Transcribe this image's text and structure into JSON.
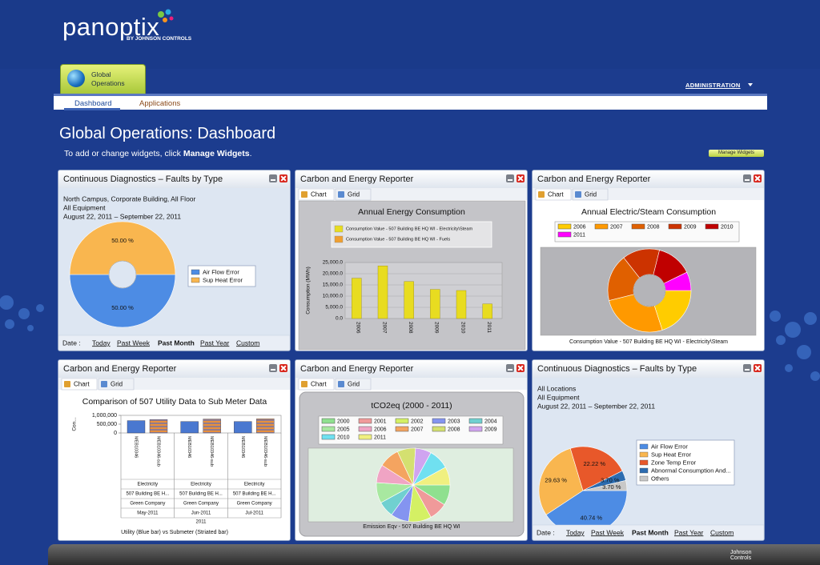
{
  "header": {
    "logo": "panoptix",
    "logo_sub": "BY JOHNSON CONTROLS",
    "tab": "Global Operations",
    "admin": "ADMINISTRATION",
    "footer_logo": "Johnson Controls"
  },
  "nav": [
    "Dashboard",
    "Applications"
  ],
  "page": {
    "title": "Global Operations: Dashboard",
    "hint": "To add or change widgets, click",
    "hint_link": "Manage Widgets",
    "hint_end": ".",
    "button": "Manage Widgets"
  },
  "widgets": [
    {
      "title": "Continuous Diagnostics – Faults by Type",
      "info": [
        "North Campus, Corporate Building, All Floor",
        "All Equipment",
        "August 22, 2011 – September 22, 2011"
      ],
      "chart": {
        "type": "donut",
        "categories": [
          "Air Flow Error",
          "Sup Heat Error"
        ],
        "values": [
          50,
          50
        ],
        "value_labels": [
          "50.00 %",
          "50.00 %"
        ],
        "colors": [
          "#4d8ce4",
          "#f9b64f"
        ]
      },
      "date_bar": {
        "label": "Date :",
        "options": [
          "Today",
          "Past Week",
          "Past Month",
          "Past Year",
          "Custom"
        ],
        "selected": 2
      }
    },
    {
      "title": "Carbon and Energy Reporter",
      "tabs": [
        "Chart",
        "Grid"
      ],
      "chart": {
        "type": "bar",
        "title": "Annual Energy Consumption",
        "y_label": "Consumption (MWh)",
        "categories": [
          "2006",
          "2007",
          "2008",
          "2009",
          "2010",
          "2011"
        ],
        "series": [
          {
            "name": "Consumption Value - 507 Building BE HQ WI - Electricity\\Steam",
            "color": "#e8dc20",
            "values": [
              18000,
              23500,
              16500,
              13000,
              12500,
              6500
            ]
          },
          {
            "name": "Consumption Value - 507 Building BE HQ WI - Fuels",
            "color": "#f0a030",
            "values": [
              0,
              0,
              0,
              0,
              0,
              0
            ]
          }
        ],
        "ylim": [
          0,
          25000
        ],
        "yticks": [
          {
            "value": 0,
            "label": "0.0"
          },
          {
            "value": 5000,
            "label": "5,000.0"
          },
          {
            "value": 10000,
            "label": "10,000.0"
          },
          {
            "value": 15000,
            "label": "15,000.0"
          },
          {
            "value": 20000,
            "label": "20,000.0"
          },
          {
            "value": 25000,
            "label": "25,000.0"
          }
        ],
        "grid": true
      }
    },
    {
      "title": "Carbon and Energy Reporter",
      "tabs": [
        "Chart",
        "Grid"
      ],
      "chart": {
        "type": "donut",
        "title": "Annual Electric/Steam Consumption",
        "caption": "Consumption Value - 507 Building BE HQ WI - Electricity\\Steam",
        "categories": [
          "2006",
          "2007",
          "2008",
          "2009",
          "2010",
          "2011"
        ],
        "values": [
          18000,
          23500,
          16500,
          13000,
          12500,
          6500
        ],
        "colors": [
          "#ffcc00",
          "#ff9900",
          "#e06000",
          "#cc3300",
          "#c00000",
          "#ff00ff"
        ]
      }
    },
    {
      "title": "Carbon and Energy Reporter",
      "tabs": [
        "Chart",
        "Grid"
      ],
      "chart": {
        "type": "grouped_bar",
        "title": "Comparison of 507 Utility Data to Sub Meter Data",
        "y_label": "Con...",
        "categories": [
          "May-2011",
          "Jun-2011",
          "Jul-2011"
        ],
        "series": [
          {
            "label": "MEB10346",
            "color": "#4a78d0",
            "values": [
              700000,
              650000,
              650000
            ]
          },
          {
            "label": "MEB10346-sub",
            "color": "#e8903c",
            "values": [
              760000,
              790000,
              800000
            ]
          }
        ],
        "rows": [
          "Electricity",
          "507 Building  BE H...",
          "Green Company"
        ],
        "year": "2011",
        "ylim": [
          0,
          1000000
        ],
        "yticks": [
          0,
          {
            "value": 500000,
            "label": "500,000"
          },
          {
            "value": 1000000,
            "label": "1,000,000"
          }
        ],
        "caption": "Utility (Blue bar) vs Submeter (Striated bar)"
      }
    },
    {
      "title": "Carbon and Energy Reporter",
      "tabs": [
        "Chart",
        "Grid"
      ],
      "chart": {
        "type": "pie",
        "title": "tCO2eq (2000 - 2011)",
        "caption": "Emission Eqv - 507 Building BE HQ WI",
        "categories": [
          "2000",
          "2001",
          "2002",
          "2003",
          "2004",
          "2005",
          "2006",
          "2007",
          "2008",
          "2009",
          "2010",
          "2011"
        ],
        "values": [
          9,
          8,
          10,
          8,
          7,
          9,
          8,
          9,
          8,
          7,
          9,
          8
        ],
        "colors": [
          "#8fe08f",
          "#f09a9a",
          "#d4f064",
          "#8494f0",
          "#70d0d0",
          "#a8e8a0",
          "#f0a4c4",
          "#f4a460",
          "#d4e070",
          "#d0a4f0",
          "#70e0f0",
          "#f0f080"
        ]
      }
    },
    {
      "title": "Continuous Diagnostics – Faults by Type",
      "info": [
        "All Locations",
        "All Equipment",
        "August 22, 2011 – September 22, 2011"
      ],
      "chart": {
        "type": "pie",
        "categories": [
          "Air Flow Error",
          "Sup Heat Error",
          "Zone Temp Error",
          "Abnormal Consumption And...",
          "Others"
        ],
        "values": [
          40.74,
          29.63,
          22.22,
          3.7,
          3.7
        ],
        "value_labels": [
          "40.74 %",
          "29.63 %",
          "22.22 %",
          "3.70 %",
          "3.70 %"
        ],
        "colors": [
          "#4d8ce4",
          "#f9b64f",
          "#e8582a",
          "#2c6cb0",
          "#c8c8c8"
        ]
      },
      "date_bar": {
        "label": "Date :",
        "options": [
          "Today",
          "Past Week",
          "Past Month",
          "Past Year",
          "Custom"
        ],
        "selected": 2
      }
    }
  ]
}
